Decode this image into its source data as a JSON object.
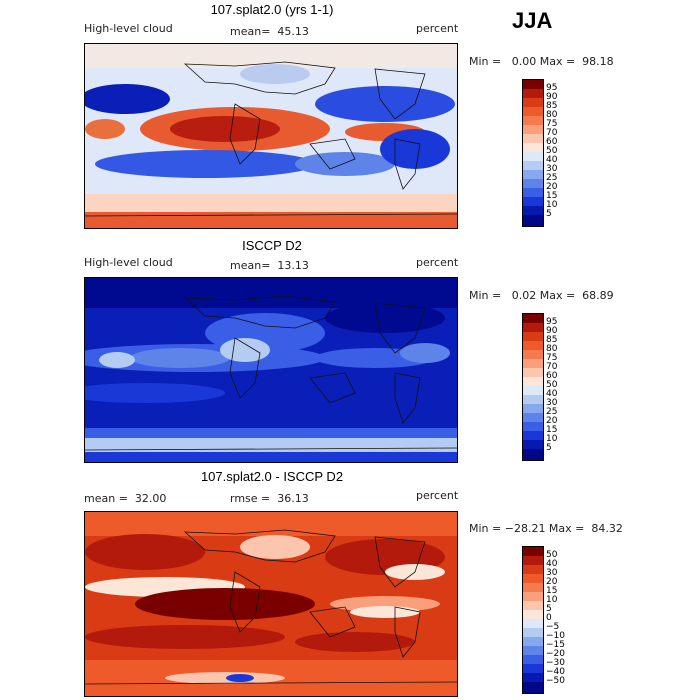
{
  "season": "JJA",
  "panels": [
    {
      "title": "107.splat2.0 (yrs 1-1)",
      "variable": "High-level cloud",
      "stat_line": "mean=  45.13",
      "units": "percent",
      "range_text": "Min =   0.00 Max =  98.18",
      "min": 0.0,
      "max": 98.18,
      "colorbar_labels": [
        "95",
        "90",
        "85",
        "80",
        "75",
        "70",
        "60",
        "50",
        "40",
        "30",
        "25",
        "20",
        "15",
        "10",
        "5"
      ]
    },
    {
      "title": "ISCCP D2",
      "variable": "High-level cloud",
      "stat_line": "mean=  13.13",
      "units": "percent",
      "range_text": "Min =   0.02 Max =  68.89",
      "min": 0.02,
      "max": 68.89,
      "colorbar_labels": [
        "95",
        "90",
        "85",
        "80",
        "75",
        "70",
        "60",
        "50",
        "40",
        "30",
        "25",
        "20",
        "15",
        "10",
        "5"
      ]
    },
    {
      "title": "107.splat2.0 - ISCCP D2",
      "mean_text": "mean =  32.00",
      "rmse_text": "rmse =  36.13",
      "units": "percent",
      "range_text": "Min = −28.21 Max =  84.32",
      "min": -28.21,
      "max": 84.32,
      "colorbar_labels": [
        "50",
        "40",
        "30",
        "20",
        "15",
        "10",
        "5",
        "0",
        "−5",
        "−10",
        "−15",
        "−20",
        "−30",
        "−40",
        "−50"
      ]
    }
  ],
  "colors": {
    "abs_scale": [
      "#7a0000",
      "#b41a0c",
      "#d93b14",
      "#ee5a2a",
      "#f57a4e",
      "#f99f7c",
      "#fbc6ad",
      "#fbe6d8",
      "#dde8f8",
      "#b5ccf2",
      "#86a8ee",
      "#5e84ea",
      "#3a5ee6",
      "#1a38d8",
      "#061ab0",
      "#000888"
    ],
    "diff_scale": [
      "#7a0000",
      "#b41a0c",
      "#d93b14",
      "#ee5a2a",
      "#f57a4e",
      "#f99f7c",
      "#fbc6ad",
      "#fbe6d8",
      "#dde8f8",
      "#b5ccf2",
      "#86a8ee",
      "#5e84ea",
      "#3a5ee6",
      "#1a38d8",
      "#061ab0",
      "#000888"
    ]
  }
}
